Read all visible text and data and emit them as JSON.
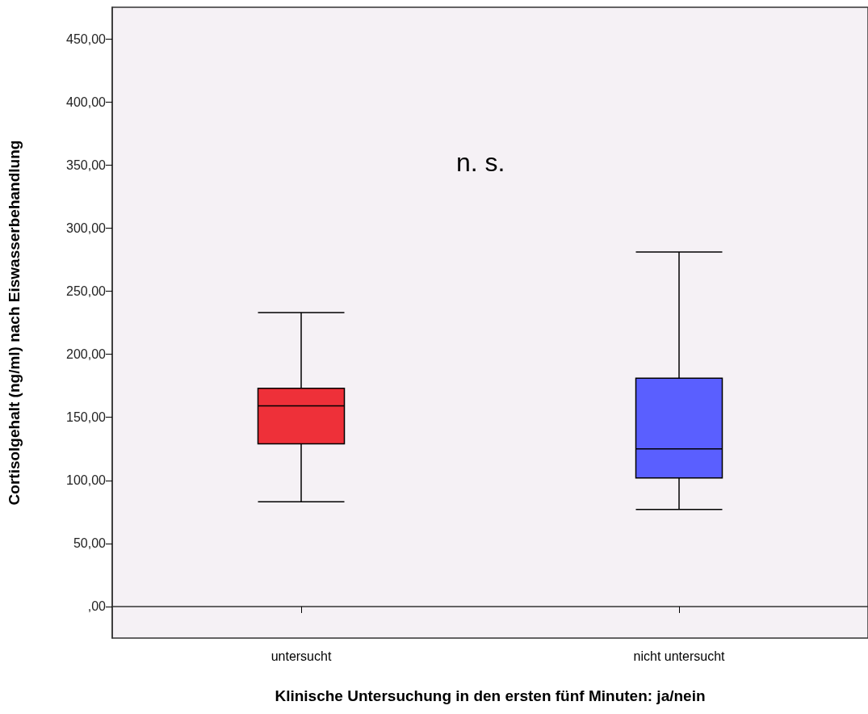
{
  "chart_data": {
    "type": "box",
    "xlabel": "Klinische Untersuchung in den ersten fünf Minuten: ja/nein",
    "ylabel": "Cortisolgehalt (ng/ml) nach Eiswasserbehandlung",
    "categories": [
      "untersucht",
      "nicht untersucht"
    ],
    "boxes": [
      {
        "low": 83,
        "q1": 129,
        "median": 159,
        "q3": 173,
        "high": 233
      },
      {
        "low": 77,
        "q1": 102,
        "median": 125,
        "q3": 181,
        "high": 281
      }
    ],
    "colors": [
      "#ee3039",
      "#5a5fff"
    ],
    "ylim": [
      -25,
      475
    ],
    "yticks": [
      {
        "value": 0,
        "label": ",00"
      },
      {
        "value": 50,
        "label": "50,00"
      },
      {
        "value": 100,
        "label": "100,00"
      },
      {
        "value": 150,
        "label": "150,00"
      },
      {
        "value": 200,
        "label": "200,00"
      },
      {
        "value": 250,
        "label": "250,00"
      },
      {
        "value": 300,
        "label": "300,00"
      },
      {
        "value": 350,
        "label": "350,00"
      },
      {
        "value": 400,
        "label": "400,00"
      },
      {
        "value": 450,
        "label": "450,00"
      }
    ],
    "annotations": [
      "n. s."
    ]
  }
}
